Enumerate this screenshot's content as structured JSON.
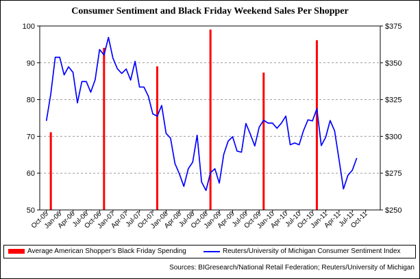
{
  "chart_data": {
    "type": "bar+line",
    "title": "Consumer Sentiment and Black Friday Weekend Sales Per Shopper",
    "x_categories": [
      "Oct-05",
      "Jan-06",
      "Apr-06",
      "Jul-06",
      "Oct-06",
      "Jan-07",
      "Apr-07",
      "Jul-07",
      "Oct-07",
      "Jan-08",
      "Apr-08",
      "Jul-08",
      "Oct-08",
      "Jan-09",
      "Apr-09",
      "Jul-09",
      "Oct-09",
      "Jan-10",
      "Apr-10",
      "Jul-10",
      "Oct-10",
      "Jan-11",
      "Apr-11",
      "Jul-11",
      "Oct-11"
    ],
    "y_left": {
      "ylim": [
        50,
        100
      ],
      "ticks": [
        "50",
        "60",
        "70",
        "80",
        "90",
        "100"
      ]
    },
    "y_right": {
      "ylim": [
        250,
        375
      ],
      "ticks": [
        "$250",
        "$275",
        "$300",
        "$325",
        "$350",
        "$375"
      ]
    },
    "grid": "horizontal dashed",
    "legend_position": "bottom",
    "series": [
      {
        "name": "Average American Shopper's Black Friday Spending",
        "kind": "bar",
        "axis": "right",
        "color": "#ff0000",
        "x": [
          "Nov-05",
          "Nov-06",
          "Nov-07",
          "Nov-08",
          "Nov-09",
          "Nov-10"
        ],
        "values": [
          302.81,
          360.15,
          347.55,
          372.57,
          343.31,
          365.34
        ]
      },
      {
        "name": "Reuters/University of Michigan Consumer Sentiment Index",
        "kind": "line",
        "axis": "left",
        "color": "#0000ff",
        "x_start": "Oct-05",
        "x_end": "Dec-11",
        "values": [
          74.2,
          81.6,
          91.5,
          91.5,
          86.7,
          88.9,
          87.4,
          79.1,
          84.9,
          84.9,
          82.0,
          85.4,
          93.6,
          92.1,
          96.9,
          91.3,
          88.4,
          87.1,
          88.3,
          85.3,
          90.4,
          83.4,
          83.4,
          80.9,
          76.1,
          75.5,
          78.4,
          70.8,
          69.5,
          62.6,
          59.8,
          56.4,
          61.2,
          63.0,
          70.3,
          57.6,
          55.3,
          60.1,
          61.2,
          57.3,
          65.1,
          68.7,
          69.9,
          66.0,
          65.7,
          73.5,
          70.6,
          67.4,
          72.5,
          74.4,
          73.6,
          73.6,
          72.2,
          73.6,
          75.5,
          67.7,
          68.2,
          67.7,
          71.6,
          74.5,
          74.2,
          77.5,
          67.5,
          69.8,
          74.3,
          71.5,
          63.7,
          55.7,
          59.4,
          60.8,
          64.1
        ]
      }
    ]
  },
  "legend": [
    {
      "label": "Average American Shopper's Black Friday Spending",
      "color": "#ff0000"
    },
    {
      "label": "Reuters/University of Michigan Consumer Sentiment Index",
      "color": "#0000ff"
    }
  ],
  "source": "Sources: BIGresearch/National Retail Federation; Reuters/University of Michigan"
}
